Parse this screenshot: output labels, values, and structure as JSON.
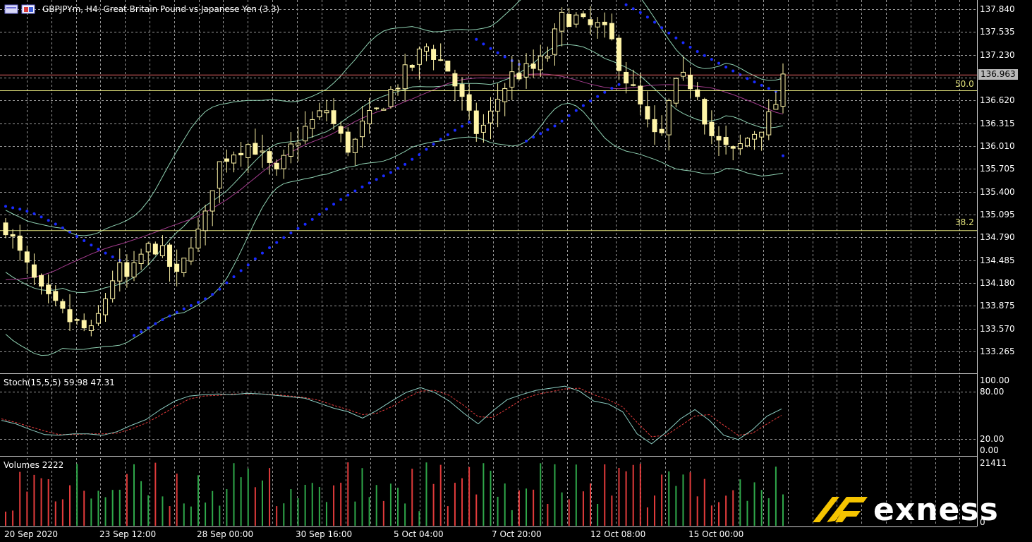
{
  "window": {
    "title": "GBPJPYm, H4:  Great Britain Pound vs Japanese Yen (3.3)",
    "icon": "chart-window-icon"
  },
  "colors": {
    "background": "#000000",
    "grid": "#9a9a9a",
    "candle": "#fff5a8",
    "bollinger": "#8fd1b2",
    "sar": "#1a2bff",
    "ma": "#a23b8c",
    "fib": "#e2e27a",
    "redline": "#e06262",
    "stoch_main": "#8fd1c6",
    "stoch_signal": "#e23b3b",
    "vol_up": "#2fa84a",
    "vol_down": "#e23b3b"
  },
  "main_panel": {
    "y_ticks": [
      "137.840",
      "137.535",
      "137.230",
      "136.963",
      "136.620",
      "136.315",
      "136.010",
      "135.705",
      "135.400",
      "135.095",
      "134.790",
      "134.485",
      "134.180",
      "133.875",
      "133.570",
      "133.265"
    ],
    "current_price": "136.963",
    "fib_levels": [
      {
        "label": "50.0",
        "price": 136.75
      },
      {
        "label": "38.2",
        "price": 134.88
      }
    ],
    "red_line_price": 136.96
  },
  "stoch_panel": {
    "title": "Stoch(15,5,5) 59.98 47.31",
    "y_ticks": [
      "100.00",
      "80.00",
      "20.00",
      "0.00"
    ]
  },
  "volume_panel": {
    "title": "Volumes 2222",
    "y_ticks": [
      "21411",
      "0"
    ]
  },
  "x_axis": [
    "20 Sep 2020",
    "23 Sep 12:00",
    "28 Sep 00:00",
    "30 Sep 16:00",
    "5 Oct 04:00",
    "7 Oct 20:00",
    "12 Oct 08:00",
    "15 Oct 00:00"
  ],
  "brand": {
    "name": "exness",
    "logo_icon": "exness-x-icon"
  },
  "chart_data": {
    "type": "candlestick",
    "symbol": "GBPJPYm",
    "timeframe": "H4",
    "ylim": [
      133.0,
      137.95
    ],
    "close_path": [
      134.95,
      134.6,
      134.3,
      134.0,
      133.85,
      133.7,
      133.6,
      133.5,
      133.95,
      134.4,
      134.2,
      134.55,
      134.7,
      134.5,
      134.2,
      134.75,
      134.9,
      135.7,
      135.9,
      136.0,
      136.05,
      135.8,
      135.6,
      135.95,
      136.2,
      136.35,
      136.5,
      136.15,
      135.95,
      136.3,
      136.45,
      136.7,
      136.9,
      137.1,
      137.35,
      137.2,
      137.0,
      136.6,
      136.2,
      136.3,
      136.7,
      136.95,
      137.0,
      137.05,
      137.25,
      137.7,
      137.75,
      137.6,
      137.6,
      137.45,
      137.0,
      136.7,
      136.3,
      136.0,
      136.75,
      136.9,
      136.8,
      136.2,
      136.0,
      135.9,
      136.1,
      136.25,
      136.4,
      136.85
    ],
    "stoch_main": [
      43,
      38,
      30,
      23,
      22,
      24,
      24,
      22,
      27,
      36,
      44,
      58,
      70,
      77,
      79,
      80,
      79,
      81,
      80,
      78,
      76,
      74,
      67,
      60,
      55,
      46,
      57,
      70,
      82,
      89,
      82,
      70,
      53,
      38,
      56,
      72,
      79,
      85,
      88,
      91,
      84,
      70,
      66,
      55,
      24,
      10,
      26,
      45,
      58,
      43,
      22,
      16,
      30,
      49,
      59
    ],
    "stoch_signal": [
      45,
      40,
      34,
      28,
      23,
      23,
      24,
      24,
      25,
      31,
      39,
      50,
      62,
      73,
      77,
      78,
      80,
      80,
      80,
      79,
      77,
      75,
      71,
      64,
      58,
      51,
      53,
      62,
      74,
      84,
      85,
      78,
      64,
      48,
      47,
      59,
      72,
      79,
      83,
      87,
      88,
      79,
      72,
      62,
      40,
      20,
      22,
      35,
      49,
      51,
      36,
      22,
      25,
      38,
      50
    ],
    "volume_min": 0,
    "volume_max": 21411
  }
}
